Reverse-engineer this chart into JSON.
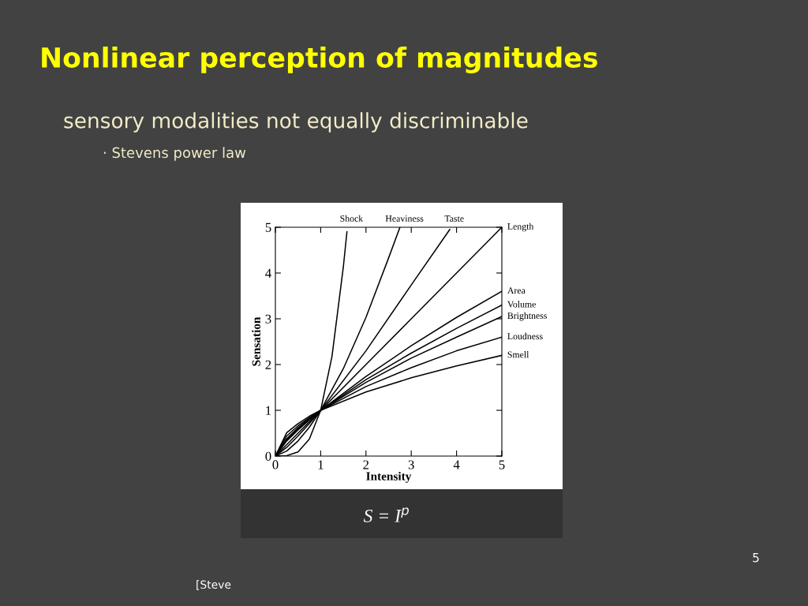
{
  "chart_data": {
    "type": "line",
    "title": "Nonlinear perception of magnitudes",
    "subtitle": "sensory modalities not equally discriminable",
    "xlabel": "Intensity",
    "ylabel": "Sensation",
    "xlim": [
      0,
      5
    ],
    "ylim": [
      0,
      5
    ],
    "xticks": [
      0,
      1,
      2,
      3,
      4,
      5
    ],
    "yticks": [
      0,
      1,
      2,
      3,
      4,
      5
    ],
    "grid": false,
    "legend": "right",
    "marker": "none",
    "line_style": "solid",
    "series": [
      {
        "name": "Shock",
        "color": "#000000",
        "x": [
          0,
          0.25,
          0.5,
          0.75,
          1,
          1.25,
          1.5,
          1.58
        ],
        "values": [
          0,
          0.01,
          0.09,
          0.37,
          1,
          2.18,
          4.13,
          4.9
        ]
      },
      {
        "name": "Heaviness",
        "color": "#000000",
        "x": [
          0,
          0.25,
          0.5,
          0.75,
          1,
          1.5,
          2,
          2.5,
          2.75
        ],
        "values": [
          0,
          0.11,
          0.33,
          0.63,
          1,
          1.91,
          3.03,
          4.33,
          5.0
        ]
      },
      {
        "name": "Taste",
        "color": "#000000",
        "x": [
          0,
          0.25,
          0.5,
          0.75,
          1,
          2,
          3,
          3.85
        ],
        "values": [
          0,
          0.19,
          0.44,
          0.71,
          1,
          2.3,
          3.74,
          4.95
        ]
      },
      {
        "name": "Length",
        "color": "#000000",
        "x": [
          0,
          1,
          2,
          3,
          4,
          5
        ],
        "values": [
          0,
          1,
          2,
          3,
          4,
          5
        ]
      },
      {
        "name": "Area",
        "color": "#000000",
        "x": [
          0,
          0.25,
          0.5,
          0.75,
          1,
          2,
          3,
          4,
          5
        ],
        "values": [
          0,
          0.33,
          0.57,
          0.79,
          1,
          1.74,
          2.41,
          3.03,
          3.6
        ]
      },
      {
        "name": "Volume",
        "color": "#000000",
        "x": [
          0,
          0.25,
          0.5,
          0.75,
          1,
          2,
          3,
          4,
          5
        ],
        "values": [
          0,
          0.36,
          0.6,
          0.81,
          1,
          1.67,
          2.25,
          2.79,
          3.3
        ]
      },
      {
        "name": "Brightness",
        "color": "#000000",
        "x": [
          0,
          0.25,
          0.5,
          0.75,
          1,
          2,
          3,
          4,
          5
        ],
        "values": [
          0,
          0.38,
          0.62,
          0.82,
          1,
          1.61,
          2.14,
          2.6,
          3.05
        ]
      },
      {
        "name": "Loudness",
        "color": "#000000",
        "x": [
          0,
          0.25,
          0.5,
          0.75,
          1,
          2,
          3,
          4,
          5
        ],
        "values": [
          0,
          0.44,
          0.66,
          0.84,
          1,
          1.52,
          1.93,
          2.3,
          2.6
        ]
      },
      {
        "name": "Smell",
        "color": "#000000",
        "x": [
          0,
          0.25,
          0.5,
          0.75,
          1,
          2,
          3,
          4,
          5
        ],
        "values": [
          0,
          0.51,
          0.71,
          0.87,
          1,
          1.4,
          1.71,
          1.97,
          2.2
        ]
      }
    ],
    "annotations": [
      "· Stevens power law",
      "S = I$^{p}$",
      "5",
      "[Steve"
    ]
  }
}
